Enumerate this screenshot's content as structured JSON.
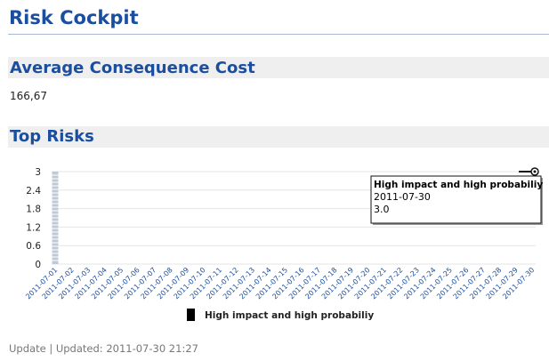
{
  "page": {
    "title": "Risk Cockpit"
  },
  "sections": {
    "avg_cost_title": "Average Consequence Cost",
    "avg_cost_value": "166,67",
    "top_risks_title": "Top Risks"
  },
  "tooltip": {
    "series": "High impact and high probabiliy",
    "date": "2011-07-30",
    "value": "3.0"
  },
  "footer": {
    "update_link": "Update",
    "separator": "|",
    "updated_text": "Updated: 2011-07-30 21:27"
  },
  "colors": {
    "title": "#1a4e9e",
    "bar": "#bfcad6",
    "legend_swatch": "#000000"
  },
  "chart_data": {
    "type": "bar",
    "categories": [
      "2011-07-01",
      "2011-07-02",
      "2011-07-03",
      "2011-07-04",
      "2011-07-05",
      "2011-07-06",
      "2011-07-07",
      "2011-07-08",
      "2011-07-09",
      "2011-07-10",
      "2011-07-11",
      "2011-07-12",
      "2011-07-13",
      "2011-07-14",
      "2011-07-15",
      "2011-07-16",
      "2011-07-17",
      "2011-07-18",
      "2011-07-19",
      "2011-07-20",
      "2011-07-21",
      "2011-07-22",
      "2011-07-23",
      "2011-07-24",
      "2011-07-25",
      "2011-07-26",
      "2011-07-27",
      "2011-07-28",
      "2011-07-29",
      "2011-07-30"
    ],
    "series": [
      {
        "name": "High impact and high probabiliy",
        "values": [
          3,
          0,
          0,
          0,
          0,
          0,
          0,
          0,
          0,
          0,
          0,
          0,
          0,
          0,
          0,
          0,
          0,
          0,
          0,
          0,
          0,
          0,
          0,
          0,
          0,
          0,
          0,
          0,
          0,
          3
        ]
      }
    ],
    "yticks": [
      "3",
      "2.4",
      "1.8",
      "1.2",
      "0.6",
      "0"
    ],
    "ylim": [
      0,
      3
    ],
    "legend_position": "bottom-center",
    "grid": true
  }
}
